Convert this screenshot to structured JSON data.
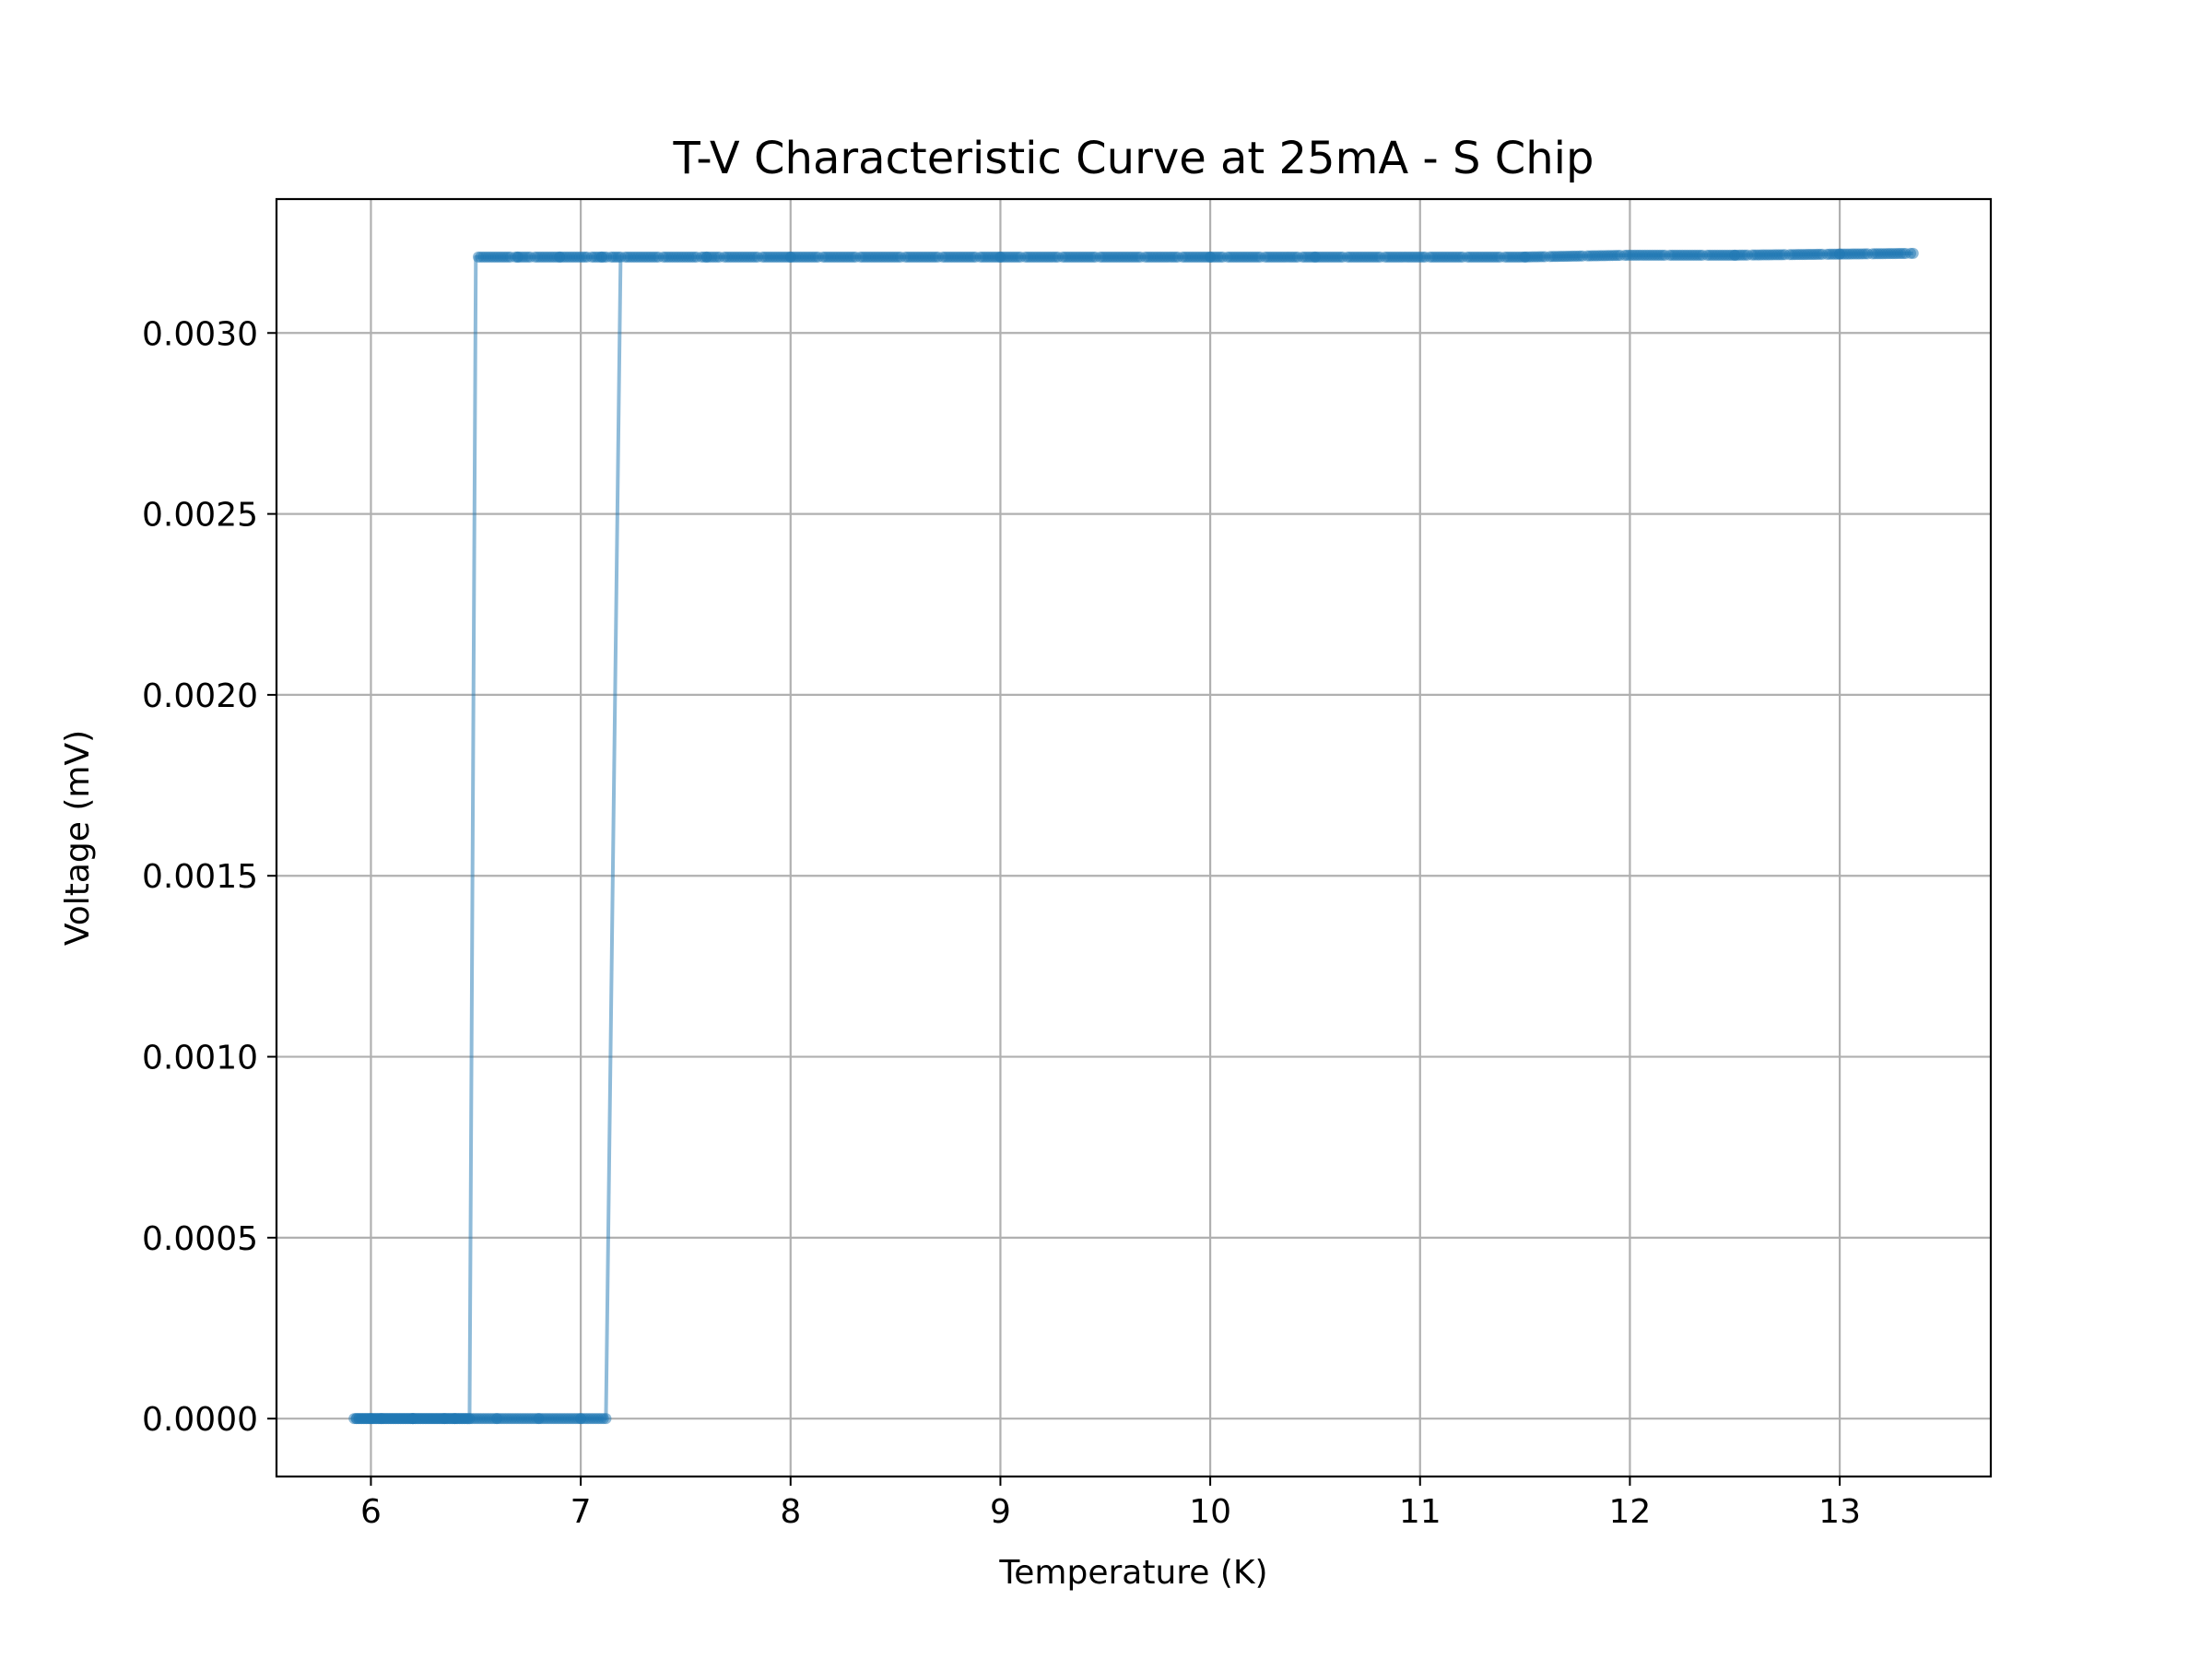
{
  "chart_data": {
    "type": "line",
    "title": "T-V Characteristic Curve at 25mA - S Chip",
    "xlabel": "Temperature (K)",
    "ylabel": "Voltage (mV)",
    "xlim": [
      5.55,
      13.72
    ],
    "ylim": [
      -0.00016,
      0.00337
    ],
    "grid": true,
    "x_ticks": [
      6,
      7,
      8,
      9,
      10,
      11,
      12,
      13
    ],
    "y_ticks": [
      0.0,
      0.0005,
      0.001,
      0.0015,
      0.002,
      0.0025,
      0.003
    ],
    "x_tick_labels": [
      "6",
      "7",
      "8",
      "9",
      "10",
      "11",
      "12",
      "13"
    ],
    "y_tick_labels": [
      "0.0000",
      "0.0005",
      "0.0010",
      "0.0015",
      "0.0020",
      "0.0025",
      "0.0030"
    ],
    "series": [
      {
        "color": "#1f77b4",
        "line_alpha": 0.5,
        "marker": "circle",
        "marker_alpha": 0.5,
        "x": [
          5.92,
          6.05,
          6.2,
          6.35,
          6.47,
          6.5,
          6.7,
          6.9,
          7.1,
          7.19,
          7.12,
          7.0,
          6.8,
          6.6,
          6.4,
          6.2,
          6.0,
          5.93
        ],
        "y": [
          0.0,
          0.0,
          0.0,
          0.0,
          0.0,
          0.00321,
          0.00321,
          0.00321,
          0.00321,
          0.00321,
          0.0,
          0.0,
          0.0,
          0.0,
          0.0,
          0.0,
          0.0,
          0.0
        ]
      },
      {
        "color": "#1f77b4",
        "line_alpha": 0.5,
        "marker": "circle",
        "marker_alpha": 0.5,
        "x": [
          7.2,
          7.6,
          8.0,
          8.5,
          9.0,
          9.5,
          10.0,
          10.5,
          11.0,
          11.5,
          12.0,
          12.5,
          13.0,
          13.35
        ],
        "y": [
          0.00321,
          0.00321,
          0.00321,
          0.00321,
          0.00321,
          0.00321,
          0.00321,
          0.00321,
          0.00321,
          0.00321,
          0.003215,
          0.003215,
          0.003218,
          0.00322
        ]
      }
    ]
  }
}
